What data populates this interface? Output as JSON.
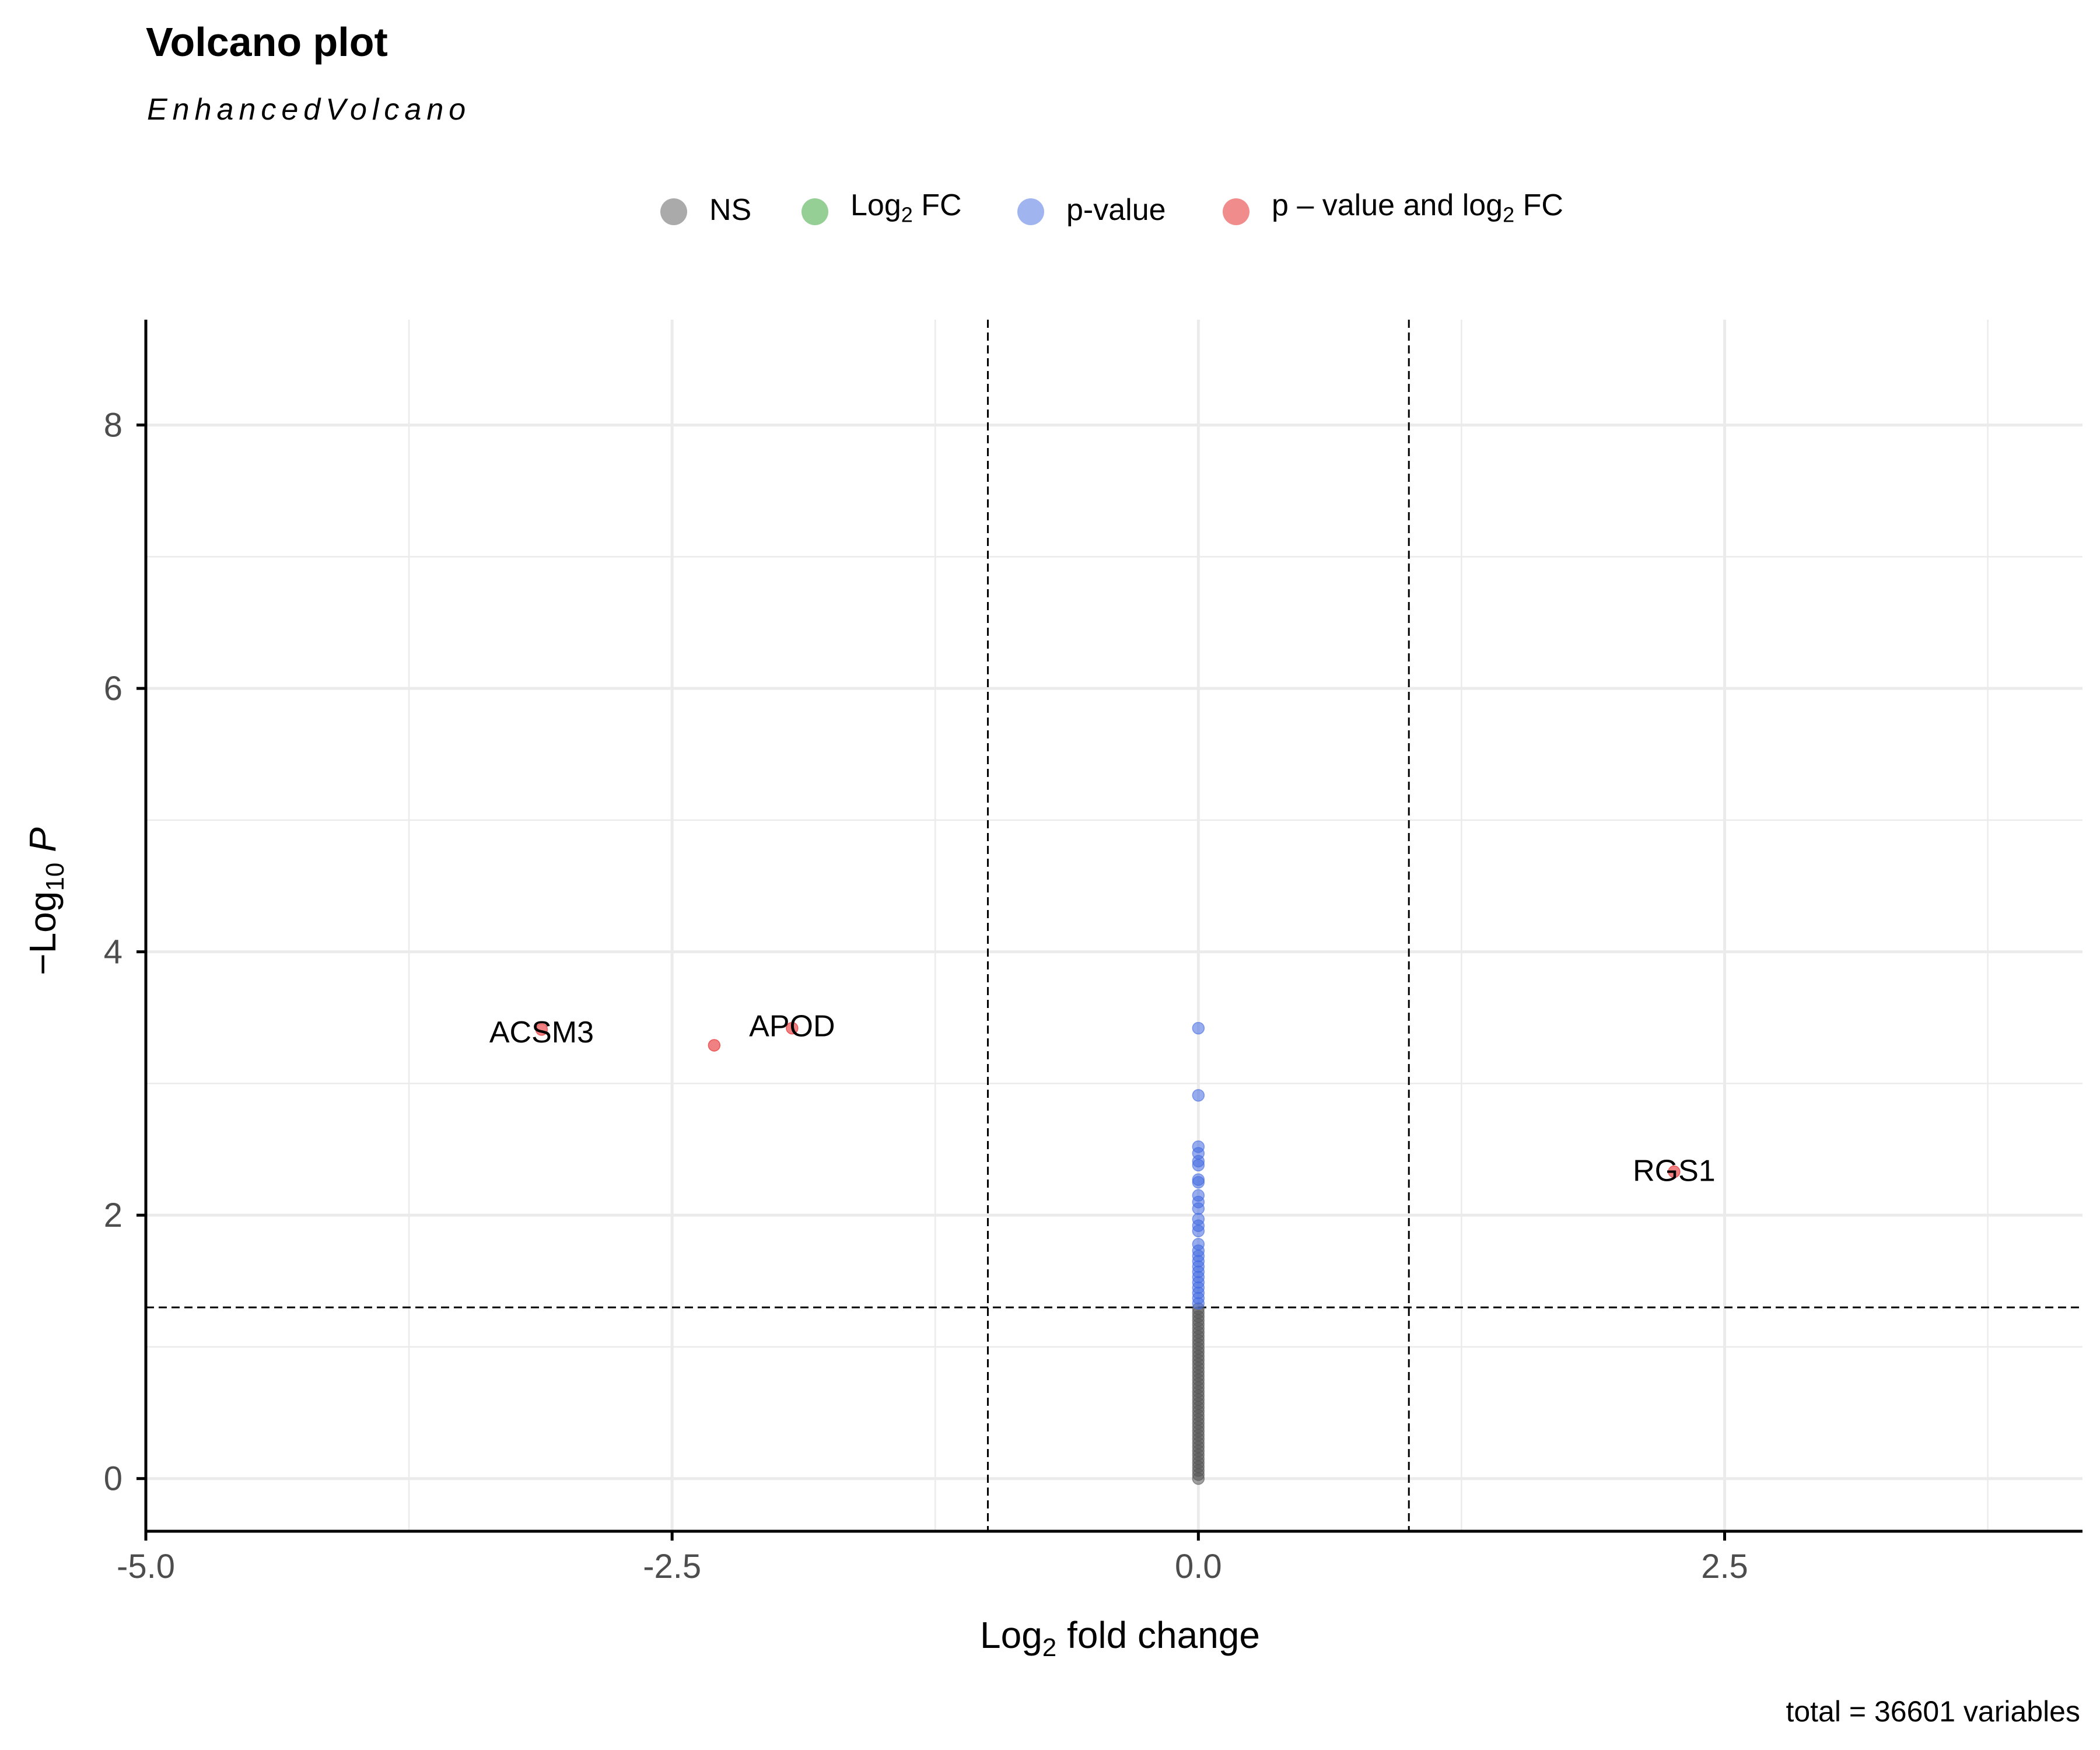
{
  "chart_data": {
    "type": "scatter",
    "title": "Volcano plot",
    "subtitle": "EnhancedVolcano",
    "caption": "total = 36601 variables",
    "xlabel": "Log2 fold change",
    "ylabel": "−Log10 P",
    "xlim": [
      -5.0,
      4.2
    ],
    "ylim": [
      -0.4,
      8.8
    ],
    "xticks": [
      "-5.0",
      "-2.5",
      "0.0",
      "2.5"
    ],
    "yticks": [
      "0",
      "2",
      "4",
      "6",
      "8"
    ],
    "grid": true,
    "legend_position": "top",
    "cutoffs": {
      "log2fc": [
        -1,
        1
      ],
      "neg_log10_p": 1.3
    },
    "colors": {
      "NS": "#555555",
      "Log2FC": "#2ca02c",
      "pvalue": "#4169e1",
      "both": "#e31a1c"
    },
    "legend": [
      {
        "key": "NS",
        "label": "NS",
        "color": "#555555"
      },
      {
        "key": "Log2FC",
        "label_main": "Log",
        "label_sub": "2",
        "label_tail": " FC",
        "color": "#2ca02c"
      },
      {
        "key": "pvalue",
        "label": "p-value",
        "color": "#4169e1"
      },
      {
        "key": "both",
        "label_main": "p – value and log",
        "label_sub": "2",
        "label_tail": " FC",
        "color": "#e31a1c"
      }
    ],
    "series": [
      {
        "name": "NS",
        "color": "#555555",
        "points": [
          [
            0,
            0.0
          ],
          [
            0,
            0.03
          ],
          [
            0,
            0.06
          ],
          [
            0,
            0.09
          ],
          [
            0,
            0.12
          ],
          [
            0,
            0.15
          ],
          [
            0,
            0.18
          ],
          [
            0,
            0.21
          ],
          [
            0,
            0.24
          ],
          [
            0,
            0.27
          ],
          [
            0,
            0.3
          ],
          [
            0,
            0.33
          ],
          [
            0,
            0.36
          ],
          [
            0,
            0.39
          ],
          [
            0,
            0.42
          ],
          [
            0,
            0.45
          ],
          [
            0,
            0.48
          ],
          [
            0,
            0.51
          ],
          [
            0,
            0.54
          ],
          [
            0,
            0.57
          ],
          [
            0,
            0.6
          ],
          [
            0,
            0.63
          ],
          [
            0,
            0.66
          ],
          [
            0,
            0.69
          ],
          [
            0,
            0.72
          ],
          [
            0,
            0.75
          ],
          [
            0,
            0.78
          ],
          [
            0,
            0.81
          ],
          [
            0,
            0.84
          ],
          [
            0,
            0.87
          ],
          [
            0,
            0.9
          ],
          [
            0,
            0.93
          ],
          [
            0,
            0.96
          ],
          [
            0,
            0.99
          ],
          [
            0,
            1.02
          ],
          [
            0,
            1.05
          ],
          [
            0,
            1.08
          ],
          [
            0,
            1.11
          ],
          [
            0,
            1.14
          ],
          [
            0,
            1.17
          ],
          [
            0,
            1.2
          ],
          [
            0,
            1.23
          ],
          [
            0,
            1.26
          ],
          [
            0,
            1.29
          ]
        ]
      },
      {
        "name": "p-value",
        "color": "#4169e1",
        "points": [
          [
            0,
            3.42
          ],
          [
            0,
            2.91
          ],
          [
            0,
            2.52
          ],
          [
            0,
            2.47
          ],
          [
            0,
            2.41
          ],
          [
            0,
            2.38
          ],
          [
            0,
            2.27
          ],
          [
            0,
            2.25
          ],
          [
            0,
            2.15
          ],
          [
            0,
            2.1
          ],
          [
            0,
            2.05
          ],
          [
            0,
            1.97
          ],
          [
            0,
            1.92
          ],
          [
            0,
            1.88
          ],
          [
            0,
            1.78
          ],
          [
            0,
            1.73
          ],
          [
            0,
            1.69
          ],
          [
            0,
            1.65
          ],
          [
            0,
            1.61
          ],
          [
            0,
            1.57
          ],
          [
            0,
            1.53
          ],
          [
            0,
            1.49
          ],
          [
            0,
            1.45
          ],
          [
            0,
            1.41
          ],
          [
            0,
            1.37
          ],
          [
            0,
            1.33
          ]
        ]
      },
      {
        "name": "p – value and log2 FC",
        "color": "#e31a1c",
        "points": [
          {
            "x": -3.12,
            "y": 3.41,
            "label": "ACSM3"
          },
          {
            "x": -2.3,
            "y": 3.29,
            "label": ""
          },
          {
            "x": -1.93,
            "y": 3.42,
            "label": "APOD"
          },
          {
            "x": 2.26,
            "y": 2.33,
            "label": "RGS1"
          }
        ]
      }
    ]
  }
}
